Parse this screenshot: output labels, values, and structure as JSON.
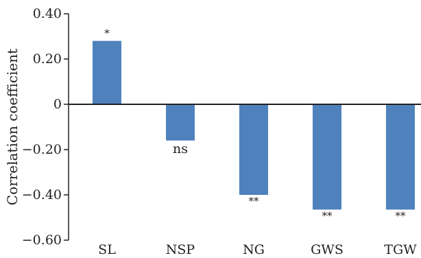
{
  "chart_data": {
    "type": "bar",
    "categories": [
      "SL",
      "NSP",
      "NG",
      "GWS",
      "TGW"
    ],
    "values": [
      0.28,
      -0.16,
      -0.4,
      -0.465,
      -0.465
    ],
    "significance": [
      "*",
      "ns",
      "**",
      "**",
      "**"
    ],
    "xlabel": "",
    "ylabel": "Correlation coefficient",
    "ylim": [
      -0.6,
      0.4
    ],
    "yticks": [
      0.4,
      0.2,
      0,
      -0.2,
      -0.4,
      -0.6
    ],
    "ytick_labels": [
      "0.40",
      "0.20",
      "0",
      "−0.20",
      "−0.40",
      "−0.60"
    ],
    "grid": false,
    "legend": "none",
    "colors": {
      "bar": "#4f81bd",
      "axis": "#231f20",
      "text": "#231f20"
    }
  }
}
